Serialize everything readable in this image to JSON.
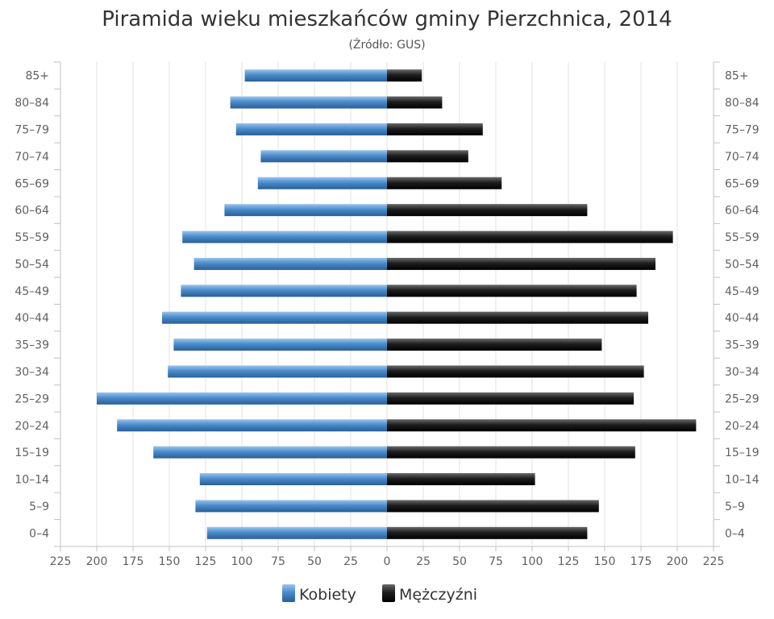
{
  "chart_data": {
    "type": "bar",
    "orientation": "horizontal",
    "layout": "population-pyramid",
    "title": "Piramida wieku mieszkańców gminy Pierzchnica, 2014",
    "subtitle": "(Źródło: GUS)",
    "categories": [
      "0–4",
      "5–9",
      "10–14",
      "15–19",
      "20–24",
      "25–29",
      "30–34",
      "35–39",
      "40–44",
      "45–49",
      "50–54",
      "55–59",
      "60–64",
      "65–69",
      "70–74",
      "75–79",
      "80–84",
      "85+"
    ],
    "series": [
      {
        "name": "Kobiety",
        "color": "#4a8ccb",
        "side": "left",
        "values": [
          124,
          132,
          129,
          161,
          186,
          200,
          151,
          147,
          155,
          142,
          133,
          141,
          112,
          89,
          87,
          104,
          108,
          98
        ]
      },
      {
        "name": "Mężczyźni",
        "color": "#1e1e1e",
        "side": "right",
        "values": [
          138,
          146,
          102,
          171,
          213,
          170,
          177,
          148,
          180,
          172,
          185,
          197,
          138,
          79,
          56,
          66,
          38,
          24
        ]
      }
    ],
    "xlim": [
      -225,
      225
    ],
    "x_ticks": [
      "225",
      "200",
      "175",
      "150",
      "125",
      "100",
      "75",
      "50",
      "25",
      "0",
      "25",
      "50",
      "75",
      "100",
      "125",
      "150",
      "175",
      "200",
      "225"
    ],
    "grid": true,
    "legend_position": "bottom-center"
  }
}
